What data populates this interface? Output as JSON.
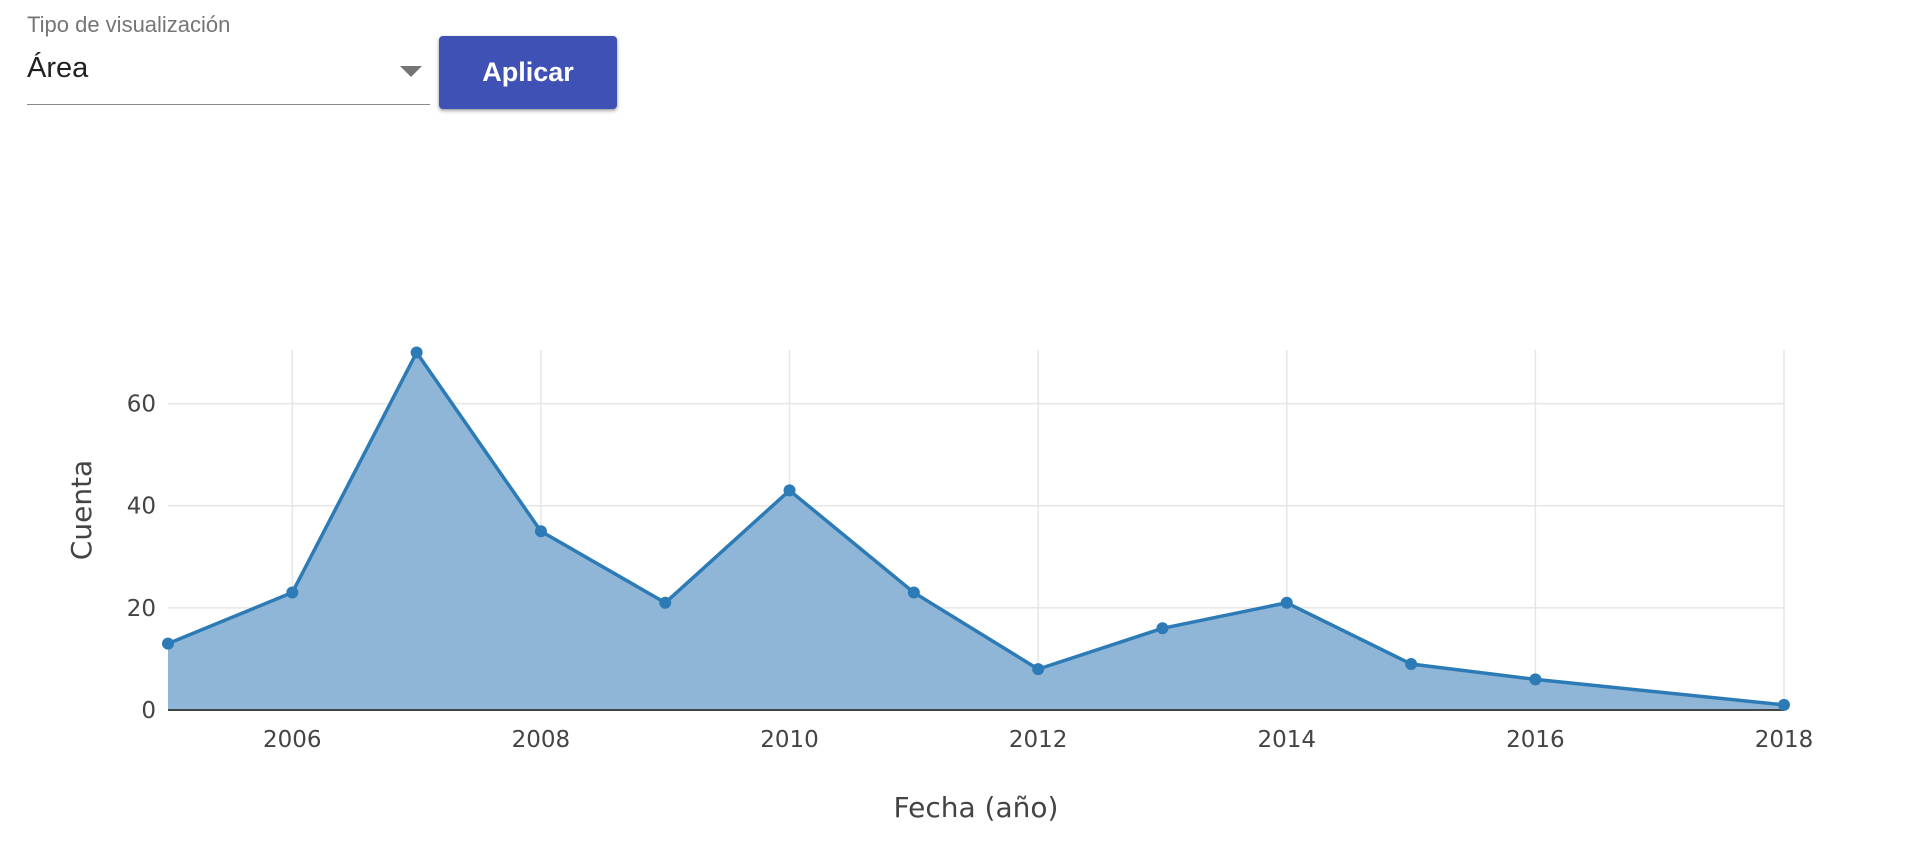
{
  "controls": {
    "select_label": "Tipo de visualización",
    "select_value": "Área",
    "apply_label": "Aplicar"
  },
  "colors": {
    "accent": "#3f51b5",
    "line": "#2c7bb6",
    "fill": "#8fb6d6",
    "grid": "#e6e6e6"
  },
  "chart_data": {
    "type": "area",
    "title": "",
    "xlabel": "Fecha (año)",
    "ylabel": "Cuenta",
    "x": [
      2005,
      2006,
      2007,
      2008,
      2009,
      2010,
      2011,
      2012,
      2013,
      2014,
      2015,
      2016,
      2018
    ],
    "series": [
      {
        "name": "",
        "values": [
          13,
          23,
          70,
          35,
          21,
          43,
          23,
          8,
          16,
          21,
          9,
          6,
          1
        ]
      }
    ],
    "xlim": [
      2005,
      2018
    ],
    "ylim": [
      0,
      70.5
    ],
    "x_ticks": [
      2006,
      2008,
      2010,
      2012,
      2014,
      2016,
      2018
    ],
    "y_ticks": [
      0,
      20,
      40,
      60
    ],
    "grid": true,
    "legend": "none"
  }
}
